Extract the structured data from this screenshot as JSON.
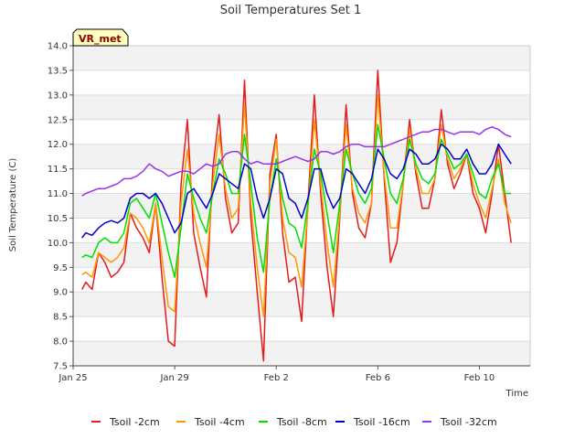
{
  "chart_data": {
    "type": "line",
    "title": "Soil Temperatures Set 1",
    "xlabel": "Time",
    "ylabel": "Soil Temperature (C)",
    "badge": "VR_met",
    "ylim": [
      7.5,
      14.0
    ],
    "y_ticks": [
      "7.5",
      "8.0",
      "8.5",
      "9.0",
      "9.5",
      "10.0",
      "10.5",
      "11.0",
      "11.5",
      "12.0",
      "12.5",
      "13.0",
      "13.5",
      "14.0"
    ],
    "xlim": [
      0,
      18
    ],
    "x_ticks": [
      {
        "x": 0,
        "label": "Jan 25"
      },
      {
        "x": 4,
        "label": "Jan 29"
      },
      {
        "x": 8,
        "label": "Feb 2"
      },
      {
        "x": 12,
        "label": "Feb 6"
      },
      {
        "x": 16,
        "label": "Feb 10"
      }
    ],
    "grid": true,
    "legend_position": "bottom",
    "x": [
      0.35,
      0.5,
      0.75,
      1.0,
      1.25,
      1.5,
      1.75,
      2.0,
      2.25,
      2.5,
      2.75,
      3.0,
      3.25,
      3.5,
      3.75,
      4.0,
      4.25,
      4.5,
      4.75,
      5.0,
      5.25,
      5.5,
      5.75,
      6.0,
      6.25,
      6.5,
      6.75,
      7.0,
      7.25,
      7.5,
      7.75,
      8.0,
      8.25,
      8.5,
      8.75,
      9.0,
      9.25,
      9.5,
      9.75,
      10.0,
      10.25,
      10.5,
      10.75,
      11.0,
      11.25,
      11.5,
      11.75,
      12.0,
      12.25,
      12.5,
      12.75,
      13.0,
      13.25,
      13.5,
      13.75,
      14.0,
      14.25,
      14.5,
      14.75,
      15.0,
      15.25,
      15.5,
      15.75,
      16.0,
      16.25,
      16.5,
      16.75,
      17.0,
      17.25
    ],
    "series": [
      {
        "name": "Tsoil -2cm",
        "color": "#e41a1c",
        "values": [
          9.05,
          9.2,
          9.05,
          9.8,
          9.6,
          9.3,
          9.4,
          9.6,
          10.6,
          10.3,
          10.1,
          9.8,
          10.8,
          9.3,
          8.0,
          7.9,
          11.2,
          12.5,
          10.2,
          9.5,
          8.9,
          11.5,
          12.6,
          10.9,
          10.2,
          10.4,
          13.3,
          10.5,
          9.0,
          7.6,
          11.4,
          12.2,
          10.2,
          9.2,
          9.3,
          8.4,
          10.8,
          13.0,
          11.0,
          9.5,
          8.5,
          10.5,
          12.8,
          11.0,
          10.3,
          10.1,
          10.8,
          13.5,
          11.3,
          9.6,
          10.0,
          11.2,
          12.5,
          11.4,
          10.7,
          10.7,
          11.3,
          12.7,
          11.6,
          11.1,
          11.4,
          11.8,
          11.0,
          10.7,
          10.2,
          11.0,
          12.0,
          11.0,
          10.0
        ]
      },
      {
        "name": "Tsoil -4cm",
        "color": "#ff9900",
        "values": [
          9.35,
          9.4,
          9.3,
          9.8,
          9.7,
          9.6,
          9.7,
          9.9,
          10.6,
          10.5,
          10.3,
          10.0,
          10.8,
          9.7,
          8.7,
          8.6,
          10.8,
          11.9,
          10.6,
          10.0,
          9.5,
          11.2,
          12.2,
          11.1,
          10.5,
          10.7,
          12.8,
          10.8,
          9.5,
          8.5,
          11.2,
          12.1,
          10.5,
          9.8,
          9.7,
          9.1,
          10.7,
          12.5,
          11.2,
          10.0,
          9.1,
          10.6,
          12.4,
          11.1,
          10.6,
          10.4,
          10.8,
          13.0,
          11.4,
          10.3,
          10.3,
          11.2,
          12.3,
          11.5,
          11.0,
          11.0,
          11.3,
          12.4,
          11.7,
          11.3,
          11.5,
          11.8,
          11.2,
          10.8,
          10.5,
          11.1,
          11.7,
          10.8,
          10.4
        ]
      },
      {
        "name": "Tsoil -8cm",
        "color": "#00e000",
        "values": [
          9.7,
          9.75,
          9.7,
          10.0,
          10.1,
          10.0,
          10.0,
          10.2,
          10.8,
          10.9,
          10.7,
          10.5,
          11.0,
          10.4,
          9.8,
          9.3,
          10.3,
          11.4,
          10.9,
          10.5,
          10.2,
          11.0,
          11.7,
          11.4,
          11.0,
          11.0,
          12.2,
          11.2,
          10.1,
          9.4,
          10.9,
          11.7,
          10.9,
          10.4,
          10.3,
          9.9,
          10.8,
          11.9,
          11.4,
          10.6,
          9.8,
          10.8,
          11.9,
          11.4,
          11.0,
          10.8,
          11.1,
          12.4,
          11.7,
          11.0,
          10.8,
          11.3,
          12.1,
          11.6,
          11.3,
          11.2,
          11.4,
          12.1,
          11.8,
          11.5,
          11.6,
          11.8,
          11.4,
          11.0,
          10.9,
          11.3,
          11.6,
          11.0,
          11.0
        ]
      },
      {
        "name": "Tsoil -16cm",
        "color": "#0000cc",
        "values": [
          10.1,
          10.2,
          10.15,
          10.3,
          10.4,
          10.45,
          10.4,
          10.5,
          10.9,
          11.0,
          11.0,
          10.9,
          11.0,
          10.8,
          10.5,
          10.2,
          10.4,
          11.0,
          11.1,
          10.9,
          10.7,
          11.0,
          11.4,
          11.3,
          11.2,
          11.1,
          11.6,
          11.5,
          10.9,
          10.5,
          10.9,
          11.5,
          11.4,
          10.9,
          10.8,
          10.5,
          10.9,
          11.5,
          11.5,
          11.0,
          10.7,
          10.9,
          11.5,
          11.4,
          11.2,
          11.0,
          11.3,
          11.9,
          11.7,
          11.4,
          11.3,
          11.5,
          11.9,
          11.8,
          11.6,
          11.6,
          11.7,
          12.0,
          11.9,
          11.7,
          11.7,
          11.9,
          11.6,
          11.4,
          11.4,
          11.6,
          12.0,
          11.8,
          11.6
        ]
      },
      {
        "name": "Tsoil -32cm",
        "color": "#9933ee",
        "values": [
          10.95,
          11.0,
          11.05,
          11.1,
          11.1,
          11.15,
          11.2,
          11.3,
          11.3,
          11.35,
          11.45,
          11.6,
          11.5,
          11.45,
          11.35,
          11.4,
          11.45,
          11.45,
          11.4,
          11.5,
          11.6,
          11.55,
          11.6,
          11.8,
          11.85,
          11.85,
          11.7,
          11.6,
          11.65,
          11.6,
          11.6,
          11.6,
          11.65,
          11.7,
          11.75,
          11.7,
          11.65,
          11.7,
          11.85,
          11.85,
          11.8,
          11.85,
          11.95,
          12.0,
          12.0,
          11.95,
          11.95,
          11.95,
          11.95,
          12.0,
          12.05,
          12.1,
          12.15,
          12.2,
          12.25,
          12.25,
          12.3,
          12.3,
          12.25,
          12.2,
          12.25,
          12.25,
          12.25,
          12.2,
          12.3,
          12.35,
          12.3,
          12.2,
          12.15
        ]
      }
    ]
  }
}
